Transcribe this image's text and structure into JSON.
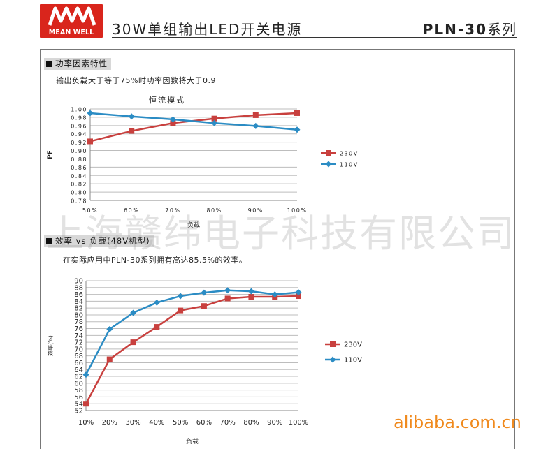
{
  "header": {
    "logo_text": "MEAN WELL",
    "title": "30W单组输出LED开关电源",
    "series_model": "PLN-30",
    "series_suffix": "系列"
  },
  "section1": {
    "heading": "功率因素特性",
    "note": "输出负载大于等于75%时功率因数将大于0.9",
    "chart_title": "恒流模式"
  },
  "section2": {
    "heading": "效率 vs 负载(48V机型)",
    "note": "在实际应用中PLN-30系列拥有高达85.5%的效率。"
  },
  "colors": {
    "series_230v": "#c8403e",
    "series_110v": "#2b8cc4",
    "logo_red": "#d9251c",
    "watermark_orange": "#f08a1e"
  },
  "watermarks": {
    "company": "上海赣纬电子科技有限公司",
    "site": "alibaba.com.cn"
  },
  "chart_data": [
    {
      "type": "line",
      "title": "恒流模式",
      "xlabel": "负载",
      "ylabel": "PF",
      "categories": [
        "50%",
        "60%",
        "70%",
        "80%",
        "90%",
        "100%"
      ],
      "yticks": [
        "0.78",
        "0.80",
        "0.82",
        "0.84",
        "0.86",
        "0.88",
        "0.90",
        "0.92",
        "0.94",
        "0.96",
        "0.98",
        "1.00"
      ],
      "ylim": [
        0.78,
        1.0
      ],
      "grid": true,
      "legend": "right",
      "series": [
        {
          "name": "230V",
          "values": [
            0.922,
            0.947,
            0.966,
            0.977,
            0.985,
            0.99
          ]
        },
        {
          "name": "110V",
          "values": [
            0.99,
            0.982,
            0.975,
            0.966,
            0.959,
            0.95
          ]
        }
      ]
    },
    {
      "type": "line",
      "title": "",
      "xlabel": "负载",
      "ylabel": "效率(%)",
      "categories": [
        "10%",
        "20%",
        "30%",
        "40%",
        "50%",
        "60%",
        "70%",
        "80%",
        "90%",
        "100%"
      ],
      "yticks": [
        "52",
        "54",
        "56",
        "58",
        "60",
        "62",
        "64",
        "66",
        "68",
        "70",
        "72",
        "74",
        "76",
        "78",
        "80",
        "82",
        "84",
        "86",
        "88",
        "90"
      ],
      "ylim": [
        52,
        90
      ],
      "grid": true,
      "legend": "right",
      "series": [
        {
          "name": "230V",
          "values": [
            54,
            67,
            72,
            76.5,
            81.3,
            82.6,
            84.8,
            85.3,
            85.3,
            85.5
          ]
        },
        {
          "name": "110V",
          "values": [
            62.5,
            75.8,
            80.6,
            83.6,
            85.5,
            86.5,
            87.2,
            86.9,
            86.0,
            86.6
          ]
        }
      ]
    }
  ]
}
